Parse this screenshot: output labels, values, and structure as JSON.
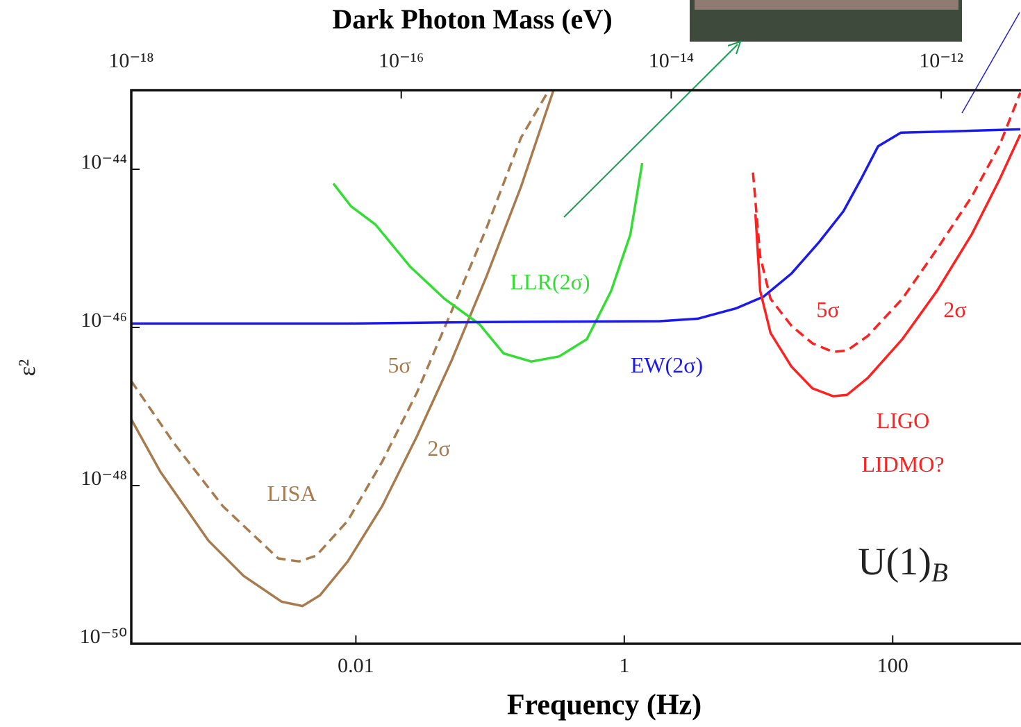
{
  "chart_data": {
    "type": "line",
    "title": "Dark Photon Mass (eV)",
    "x_label": "Frequency (Hz)",
    "y_label": "ε²",
    "xscale": "log",
    "yscale": "log",
    "xlim": [
      0.000212,
      904
    ],
    "ylim": [
      1e-50,
      1e-43
    ],
    "x2lim": [
      1e-18,
      3.9e-12
    ],
    "xticks": [
      0.01,
      1,
      100
    ],
    "x2ticks": [
      {
        "value": 1e-18,
        "label": "10⁻¹⁸"
      },
      {
        "value": 1e-16,
        "label": "10⁻¹⁶"
      },
      {
        "value": 1e-14,
        "label": "10⁻¹⁴"
      },
      {
        "value": 1e-12,
        "label": "10⁻¹²"
      }
    ],
    "yticks": [
      {
        "value": 1e-50,
        "label": "10⁻⁵⁰"
      },
      {
        "value": 1e-48,
        "label": "10⁻⁴⁸"
      },
      {
        "value": 1e-46,
        "label": "10⁻⁴⁶"
      },
      {
        "value": 1e-44,
        "label": "10⁻⁴⁴"
      }
    ],
    "series": [
      {
        "color": "#a87b4f",
        "dashed": false,
        "x": [
          0.000212,
          0.000349,
          0.0008,
          0.00146,
          0.0028,
          0.004,
          0.0054,
          0.0087,
          0.0157,
          0.0285,
          0.0516,
          0.094,
          0.17,
          0.297
        ],
        "values": [
          6.9e-48,
          1.5e-48,
          2e-49,
          7.2e-50,
          3.4e-50,
          3e-50,
          4.1e-50,
          1.1e-49,
          5.5e-49,
          4.2e-48,
          3.8e-47,
          4.4e-46,
          6e-45,
          1e-43
        ]
      },
      {
        "color": "#a87b4f",
        "dashed": true,
        "x": [
          0.000212,
          0.000443,
          0.00102,
          0.00264,
          0.00377,
          0.00507,
          0.0087,
          0.0157,
          0.0285,
          0.0516,
          0.094,
          0.17,
          0.274
        ],
        "values": [
          2.1e-47,
          3.4e-48,
          5.5e-49,
          1.2e-49,
          1.1e-49,
          1.3e-49,
          3.6e-49,
          2e-48,
          1.5e-47,
          1.6e-46,
          1.8e-45,
          2.5e-44,
          1e-43
        ]
      },
      {
        "color": "#33dd33",
        "dashed": false,
        "x": [
          0.0068,
          0.0092,
          0.014,
          0.0253,
          0.0458,
          0.0832,
          0.126,
          0.203,
          0.327,
          0.526,
          0.798,
          1.11,
          1.36
        ],
        "values": [
          6.6e-45,
          3.4e-45,
          2e-45,
          5.9e-46,
          2.3e-46,
          1.1e-46,
          4.7e-47,
          3.7e-47,
          4.3e-47,
          7.1e-47,
          2.9e-46,
          1.5e-45,
          1.2e-44
        ]
      },
      {
        "color": "#1a1aee",
        "dashed": false,
        "x": [
          0.000212,
          0.0087,
          0.094,
          1.84,
          3.53,
          6.79,
          10.9,
          17.6,
          28.3,
          43.0,
          57.8,
          77.8,
          115,
          241,
          893
        ],
        "values": [
          1.12e-46,
          1.12e-46,
          1.17e-46,
          1.2e-46,
          1.29e-46,
          1.74e-46,
          2.45e-46,
          4.8e-46,
          1.2e-45,
          2.95e-45,
          7.4e-45,
          1.95e-44,
          2.9e-44,
          3e-44,
          3.2e-44
        ]
      },
      {
        "color": "#ff2020",
        "dashed": false,
        "x": [
          9.5,
          10.3,
          12.3,
          17.6,
          25.2,
          36.0,
          45.6,
          65.2,
          118,
          214,
          388,
          625,
          893
        ],
        "values": [
          2.7e-45,
          2.9e-46,
          8.5e-47,
          3.2e-47,
          1.7e-47,
          1.35e-47,
          1.4e-47,
          2.3e-47,
          7.1e-47,
          2.9e-46,
          1.5e-45,
          7.4e-45,
          2.75e-44
        ]
      },
      {
        "color": "#ff2020",
        "dashed": true,
        "x": [
          9.1,
          10.3,
          12.3,
          17.6,
          25.2,
          36.0,
          45.6,
          65.2,
          118,
          214,
          388,
          625,
          893
        ],
        "values": [
          9.1e-45,
          7.9e-46,
          2.3e-46,
          1.05e-46,
          6.3e-47,
          4.9e-47,
          5.1e-47,
          7.8e-47,
          2.3e-46,
          9.8e-46,
          4.5e-45,
          2e-44,
          9.3e-44
        ]
      }
    ],
    "annotations": [
      {
        "text": "LLR(2σ)",
        "color": "#33dd33"
      },
      {
        "text": "EW(2σ)",
        "color": "#1a1aee"
      },
      {
        "text": "5σ",
        "color": "#a87b4f"
      },
      {
        "text": "2σ",
        "color": "#a87b4f"
      },
      {
        "text": "LISA",
        "color": "#a87b4f"
      },
      {
        "text": "5σ",
        "color": "#ff2020"
      },
      {
        "text": "2σ",
        "color": "#ff2020"
      },
      {
        "text": "LIGO",
        "color": "#ff2020"
      },
      {
        "text": "LIDMO?",
        "color": "#ff2020"
      },
      {
        "text": "U(1)",
        "sub": "B",
        "color": "#222222"
      }
    ]
  }
}
